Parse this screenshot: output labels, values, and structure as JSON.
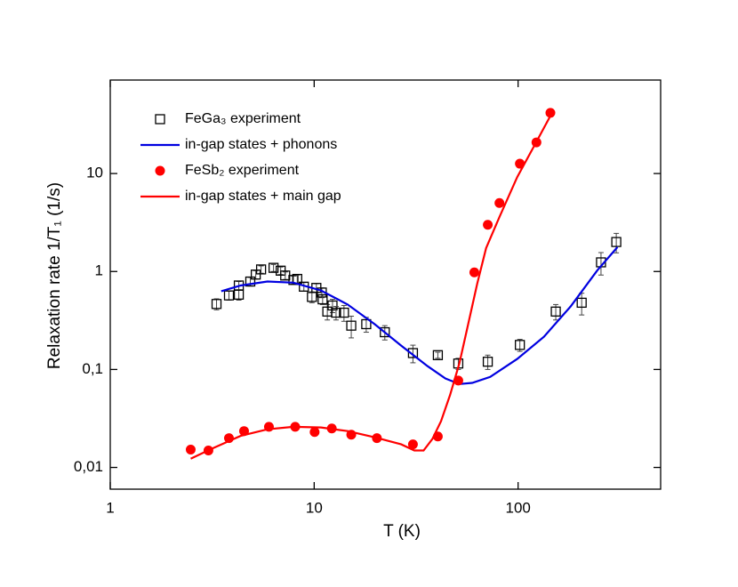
{
  "chart_data": {
    "type": "scatter",
    "x_label": "T (K)",
    "y_label": "Relaxation rate 1/T₁ (1/s)",
    "x_scale": "log",
    "y_scale": "log",
    "xlim": [
      1,
      500
    ],
    "ylim": [
      0.006,
      90
    ],
    "xticks": [
      1,
      10,
      100
    ],
    "yticks": [
      {
        "value": 0.01,
        "label": "0,01"
      },
      {
        "value": 0.1,
        "label": "0,1"
      },
      1,
      10
    ],
    "legend": "upper left",
    "series": [
      {
        "name": "FeGa₃ experiment",
        "style": "markers",
        "marker": "square",
        "color": "#000000",
        "x": [
          3.32,
          3.82,
          4.27,
          4.27,
          4.86,
          5.17,
          5.49,
          6.32,
          6.85,
          7.21,
          7.91,
          8.26,
          8.9,
          9.75,
          10.25,
          10.9,
          11.0,
          11.6,
          12.3,
          12.8,
          14.0,
          15.2,
          18.0,
          22.2,
          30.5,
          40.4,
          50.9,
          71,
          102,
          153,
          205,
          255,
          303
        ],
        "values": [
          0.466,
          0.57,
          0.72,
          0.58,
          0.79,
          0.93,
          1.05,
          1.09,
          1.02,
          0.91,
          0.82,
          0.84,
          0.7,
          0.55,
          0.68,
          0.61,
          0.52,
          0.39,
          0.45,
          0.38,
          0.38,
          0.28,
          0.29,
          0.24,
          0.147,
          0.14,
          0.115,
          0.12,
          0.178,
          0.39,
          0.48,
          1.24,
          2.0
        ],
        "errors": [
          0.06,
          0.06,
          0.07,
          0.07,
          0.08,
          0.09,
          0.09,
          0.09,
          0.09,
          0.08,
          0.08,
          0.08,
          0.07,
          0.07,
          0.07,
          0.07,
          0.06,
          0.07,
          0.07,
          0.06,
          0.07,
          0.07,
          0.05,
          0.04,
          0.03,
          0.01,
          0.015,
          0.02,
          0.025,
          0.07,
          0.12,
          0.32,
          0.45
        ]
      },
      {
        "name": "in-gap states + phonons",
        "style": "line",
        "color": "#0000e0",
        "x": [
          3.5,
          4.36,
          5.9,
          7.9,
          10.8,
          14.6,
          19.8,
          26.7,
          36,
          44,
          51.5,
          59.6,
          73,
          99,
          134,
          181,
          245,
          307
        ],
        "values": [
          0.63,
          0.72,
          0.79,
          0.77,
          0.64,
          0.46,
          0.29,
          0.175,
          0.108,
          0.081,
          0.071,
          0.073,
          0.084,
          0.128,
          0.216,
          0.44,
          1.03,
          1.77
        ]
      },
      {
        "name": "FeSb₂ experiment",
        "style": "markers",
        "marker": "circle",
        "color": "#ff0000",
        "x": [
          2.48,
          3.03,
          3.82,
          4.53,
          6.0,
          8.07,
          10.05,
          12.2,
          15.2,
          20.3,
          30.5,
          40.4,
          50.9,
          61,
          71,
          81,
          102,
          123,
          144
        ],
        "values": [
          0.0152,
          0.0149,
          0.0199,
          0.0235,
          0.026,
          0.026,
          0.023,
          0.025,
          0.0216,
          0.0199,
          0.0172,
          0.0207,
          0.077,
          0.98,
          3.0,
          5.0,
          12.6,
          20.8,
          41.6
        ]
      },
      {
        "name": "in-gap states + main gap",
        "style": "line",
        "color": "#ff0000",
        "x": [
          2.48,
          3.2,
          4.36,
          5.9,
          7.9,
          10.8,
          14.6,
          19.8,
          26.7,
          31,
          34.4,
          38,
          41.9,
          46.4,
          51.5,
          57,
          63,
          69.7,
          81,
          99,
          121,
          148
        ],
        "values": [
          0.0123,
          0.0158,
          0.021,
          0.0245,
          0.026,
          0.0256,
          0.0235,
          0.0203,
          0.0172,
          0.0149,
          0.0149,
          0.0195,
          0.0296,
          0.055,
          0.115,
          0.294,
          0.75,
          1.73,
          3.6,
          9.2,
          19.8,
          43
        ]
      }
    ]
  }
}
